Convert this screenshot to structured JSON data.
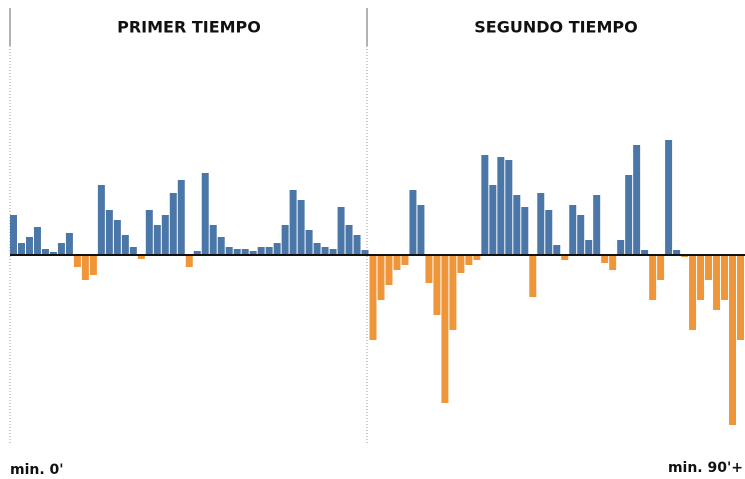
{
  "chart_data": {
    "type": "bar",
    "panel_titles": [
      "PRIMER TIEMPO",
      "SEGUNDO TIEMPO"
    ],
    "x_start_label": "min. 0'",
    "x_end_label": "min. 90'+",
    "ylim": [
      -190,
      205
    ],
    "series": [
      {
        "color": "#4a76a8",
        "values": [
          40,
          12,
          18,
          28,
          6,
          3,
          12,
          22,
          null,
          null,
          null,
          70,
          45,
          35,
          20,
          8,
          null,
          45,
          30,
          40,
          62,
          75,
          null,
          4,
          82,
          30,
          18,
          8,
          6,
          6,
          4,
          8,
          8,
          12,
          30,
          65,
          55,
          25,
          12,
          8,
          6,
          48,
          30,
          20,
          5,
          null,
          null,
          null,
          null,
          null,
          65,
          50,
          null,
          null,
          null,
          null,
          null,
          null,
          null,
          100,
          70,
          98,
          95,
          60,
          48,
          null,
          62,
          45,
          10,
          null,
          50,
          40,
          15,
          60,
          null,
          null,
          15,
          80,
          110,
          5,
          null,
          null,
          115,
          5,
          null,
          null,
          null,
          null,
          null,
          null,
          null,
          null
        ]
      },
      {
        "color": "#f0963a",
        "values": [
          null,
          null,
          null,
          null,
          null,
          null,
          null,
          null,
          -12,
          -25,
          -20,
          null,
          null,
          null,
          null,
          null,
          -4,
          null,
          null,
          null,
          null,
          null,
          -12,
          null,
          null,
          null,
          null,
          null,
          null,
          null,
          null,
          null,
          null,
          null,
          null,
          null,
          null,
          null,
          null,
          null,
          null,
          null,
          null,
          null,
          null,
          -85,
          -45,
          -30,
          -15,
          -10,
          null,
          null,
          -28,
          -60,
          -148,
          -75,
          -18,
          -10,
          -5,
          null,
          null,
          null,
          null,
          null,
          null,
          -42,
          null,
          null,
          null,
          -5,
          null,
          null,
          null,
          null,
          -8,
          -15,
          null,
          null,
          null,
          null,
          -45,
          -25,
          null,
          null,
          -2,
          -75,
          -45,
          -25,
          -55,
          -45,
          -170,
          -85
        ]
      }
    ]
  }
}
